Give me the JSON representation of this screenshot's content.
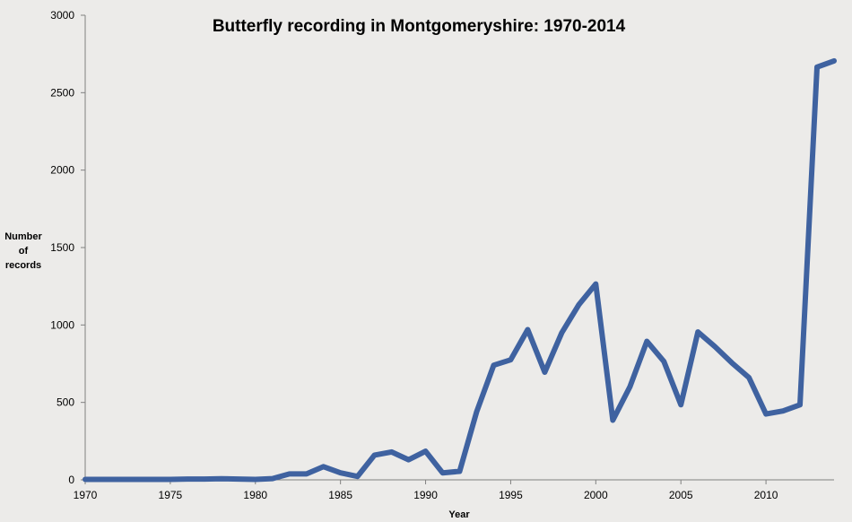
{
  "chart_data": {
    "type": "line",
    "title": "Butterfly recording in Montgomeryshire: 1970-2014",
    "xlabel": "Year",
    "ylabel_lines": [
      "Number",
      "of",
      "records"
    ],
    "xlim": [
      1970,
      2014
    ],
    "ylim": [
      0,
      3000
    ],
    "x_ticks": [
      1970,
      1975,
      1980,
      1985,
      1990,
      1995,
      2000,
      2005,
      2010
    ],
    "y_ticks": [
      0,
      500,
      1000,
      1500,
      2000,
      2500,
      3000
    ],
    "grid": false,
    "legend": "none",
    "line_color": "#3f62a0",
    "series": [
      {
        "x": [
          1970,
          1971,
          1972,
          1973,
          1974,
          1975,
          1976,
          1977,
          1978,
          1979,
          1980,
          1981,
          1982,
          1983,
          1984,
          1985,
          1986,
          1987,
          1988,
          1989,
          1990,
          1991,
          1992,
          1993,
          1994,
          1995,
          1996,
          1997,
          1998,
          1999,
          2000,
          2001,
          2002,
          2003,
          2004,
          2005,
          2006,
          2007,
          2008,
          2009,
          2010,
          2011,
          2012,
          2013,
          2014
        ],
        "values": [
          3,
          3,
          3,
          3,
          3,
          3,
          5,
          5,
          7,
          5,
          3,
          8,
          38,
          38,
          85,
          45,
          22,
          160,
          180,
          130,
          185,
          45,
          55,
          440,
          740,
          775,
          970,
          695,
          950,
          1130,
          1265,
          385,
          600,
          895,
          765,
          485,
          955,
          860,
          755,
          660,
          425,
          445,
          485,
          2665,
          2705
        ]
      }
    ]
  }
}
